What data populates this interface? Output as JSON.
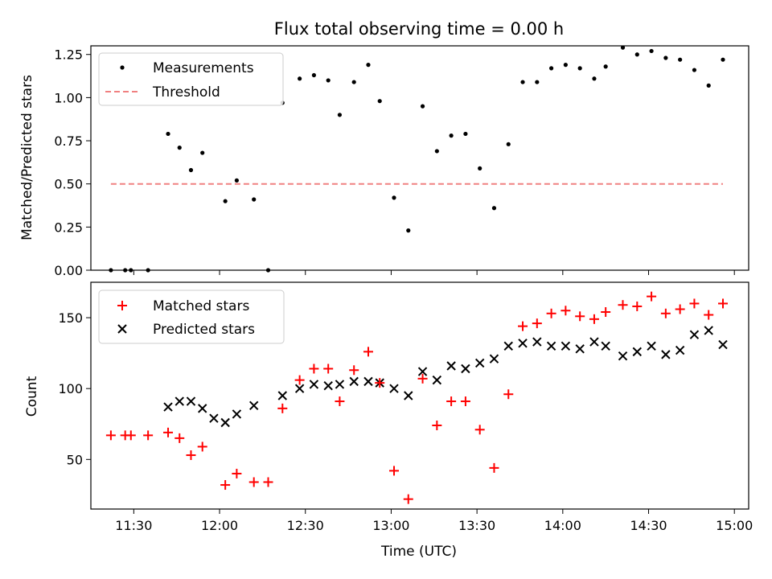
{
  "chart_data": [
    {
      "type": "scatter",
      "title": "Flux total observing time = 0.00 h",
      "xlabel": "",
      "ylabel": "Matched/Predicted stars",
      "x_axis": "time (UTC, hours)",
      "xlim": [
        "11:15",
        "15:05"
      ],
      "ylim": [
        0,
        1.3
      ],
      "yticks": [
        "0.00",
        "0.25",
        "0.50",
        "0.75",
        "1.00",
        "1.25"
      ],
      "legend_position": "upper-left",
      "grid": false,
      "series": [
        {
          "name": "Measurements",
          "kind": "scatter",
          "marker": "dot",
          "color": "#000000",
          "x": [
            "11:22",
            "11:27",
            "11:29",
            "11:35",
            "11:42",
            "11:46",
            "11:50",
            "11:54",
            "12:02",
            "12:06",
            "12:12",
            "12:17",
            "12:22",
            "12:28",
            "12:33",
            "12:38",
            "12:42",
            "12:47",
            "12:52",
            "12:56",
            "13:01",
            "13:06",
            "13:11",
            "13:16",
            "13:21",
            "13:26",
            "13:31",
            "13:36",
            "13:41",
            "13:46",
            "13:51",
            "13:56",
            "14:01",
            "14:06",
            "14:11",
            "14:15",
            "14:21",
            "14:26",
            "14:31",
            "14:36",
            "14:41",
            "14:46",
            "14:51",
            "14:56"
          ],
          "y": [
            0.0,
            0.0,
            0.0,
            0.0,
            0.79,
            0.71,
            0.58,
            0.68,
            0.4,
            0.52,
            0.41,
            0.0,
            0.97,
            1.11,
            1.13,
            1.1,
            0.9,
            1.09,
            1.19,
            0.98,
            0.42,
            0.23,
            0.95,
            0.69,
            0.78,
            0.79,
            0.59,
            0.36,
            0.73,
            1.09,
            1.09,
            1.17,
            1.19,
            1.17,
            1.11,
            1.18,
            1.29,
            1.25,
            1.27,
            1.23,
            1.22,
            1.16,
            1.07,
            1.22
          ]
        },
        {
          "name": "Threshold",
          "kind": "line",
          "style": "dashed",
          "color": "#f08080",
          "x": [
            "11:22",
            "14:56"
          ],
          "y": [
            0.5,
            0.5
          ]
        }
      ]
    },
    {
      "type": "scatter",
      "title": "",
      "xlabel": "Time (UTC)",
      "ylabel": "Count",
      "xlim": [
        "11:15",
        "15:05"
      ],
      "ylim": [
        15,
        175
      ],
      "yticks": [
        "50",
        "100",
        "150"
      ],
      "xticks": [
        "11:30",
        "12:00",
        "12:30",
        "13:00",
        "13:30",
        "14:00",
        "14:30",
        "15:00"
      ],
      "legend_position": "upper-left",
      "grid": false,
      "series": [
        {
          "name": "Matched stars",
          "kind": "scatter",
          "marker": "plus",
          "color": "#ff0000",
          "x": [
            "11:22",
            "11:27",
            "11:29",
            "11:35",
            "11:42",
            "11:46",
            "11:50",
            "11:54",
            "12:02",
            "12:06",
            "12:12",
            "12:17",
            "12:22",
            "12:28",
            "12:33",
            "12:38",
            "12:42",
            "12:47",
            "12:52",
            "12:56",
            "13:01",
            "13:06",
            "13:11",
            "13:16",
            "13:21",
            "13:26",
            "13:31",
            "13:36",
            "13:41",
            "13:46",
            "13:51",
            "13:56",
            "14:01",
            "14:06",
            "14:11",
            "14:15",
            "14:21",
            "14:26",
            "14:31",
            "14:36",
            "14:41",
            "14:46",
            "14:51",
            "14:56"
          ],
          "y": [
            67,
            67,
            67,
            67,
            69,
            65,
            53,
            59,
            32,
            40,
            34,
            34,
            86,
            106,
            114,
            114,
            91,
            113,
            126,
            104,
            42,
            22,
            107,
            74,
            91,
            91,
            71,
            44,
            96,
            144,
            146,
            153,
            155,
            151,
            149,
            154,
            159,
            158,
            165,
            153,
            156,
            160,
            152,
            160
          ]
        },
        {
          "name": "Predicted stars",
          "kind": "scatter",
          "marker": "x",
          "color": "#000000",
          "x": [
            "11:42",
            "11:46",
            "11:50",
            "11:54",
            "11:58",
            "12:02",
            "12:06",
            "12:12",
            "12:22",
            "12:28",
            "12:33",
            "12:38",
            "12:42",
            "12:47",
            "12:52",
            "12:56",
            "13:01",
            "13:06",
            "13:11",
            "13:16",
            "13:21",
            "13:26",
            "13:31",
            "13:36",
            "13:41",
            "13:46",
            "13:51",
            "13:56",
            "14:01",
            "14:06",
            "14:11",
            "14:15",
            "14:21",
            "14:26",
            "14:31",
            "14:36",
            "14:41",
            "14:46",
            "14:51",
            "14:56"
          ],
          "y": [
            87,
            91,
            91,
            86,
            79,
            76,
            82,
            88,
            95,
            100,
            103,
            102,
            103,
            105,
            105,
            104,
            100,
            95,
            112,
            106,
            116,
            114,
            118,
            121,
            130,
            132,
            133,
            130,
            130,
            128,
            133,
            130,
            123,
            126,
            130,
            124,
            127,
            138,
            141,
            131
          ]
        }
      ]
    }
  ]
}
